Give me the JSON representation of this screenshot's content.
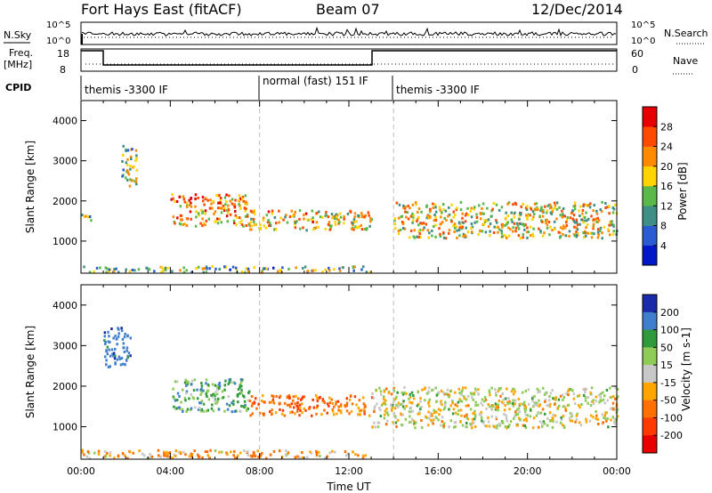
{
  "header": {
    "title": "Fort Hays East (fitACF)",
    "beam": "Beam 07",
    "date": "12/Dec/2014"
  },
  "panels": {
    "nsky_label": "N.Sky",
    "nsky_ticks": [
      "10^5",
      "10^0"
    ],
    "nsearch_label": "N.Search",
    "nsearch_ticks": [
      "10^5",
      "10^0"
    ],
    "freq_label": "Freq.",
    "freq_unit": "[MHz]",
    "freq_ticks": [
      "18",
      "8"
    ],
    "nave_label": "Nave",
    "nave_ticks": [
      "60",
      "0"
    ],
    "cpid_label": "CPID",
    "cpid_modes": [
      "themis -3300 IF",
      "normal (fast) 151 IF",
      "themis -3300 IF"
    ]
  },
  "chart_data": [
    {
      "type": "heatmap",
      "name": "power",
      "xlabel": "",
      "ylabel": "Slant Range [km]",
      "xlim": [
        0,
        24
      ],
      "ylim": [
        200,
        4500
      ],
      "yticks": [
        1000,
        2000,
        3000,
        4000
      ],
      "colorbar": {
        "label": "Power [dB]",
        "ticks": [
          "4",
          "8",
          "12",
          "16",
          "20",
          "24",
          "28"
        ],
        "colors": [
          "#0018c8",
          "#2a5bd0",
          "#3f8f86",
          "#5ab948",
          "#ffd400",
          "#ff8a00",
          "#ff4a00",
          "#e60000"
        ]
      },
      "echo_regions": [
        {
          "t": [
            0.0,
            0.5
          ],
          "range": [
            1500,
            1700
          ],
          "level": 0.5
        },
        {
          "t": [
            1.8,
            2.5
          ],
          "range": [
            2400,
            3400
          ],
          "level": 0.45
        },
        {
          "t": [
            4.0,
            7.5
          ],
          "range": [
            1400,
            2200
          ],
          "level": 0.7
        },
        {
          "t": [
            7.5,
            13.0
          ],
          "range": [
            1300,
            1800
          ],
          "level": 0.6
        },
        {
          "t": [
            14.0,
            24.0
          ],
          "range": [
            1100,
            2000
          ],
          "level": 0.55
        },
        {
          "t": [
            0.0,
            13.0
          ],
          "range": [
            250,
            400
          ],
          "level": 0.4
        }
      ]
    },
    {
      "type": "heatmap",
      "name": "velocity",
      "xlabel": "Time UT",
      "ylabel": "Slant Range [km]",
      "xlim": [
        0,
        24
      ],
      "ylim": [
        200,
        4500
      ],
      "yticks": [
        1000,
        2000,
        3000,
        4000
      ],
      "xticks": [
        "00:00",
        "04:00",
        "08:00",
        "12:00",
        "16:00",
        "20:00",
        "00:00"
      ],
      "colorbar": {
        "label": "Velocity [m s-1]",
        "ticks": [
          "200",
          "100",
          "50",
          "15",
          "-15",
          "-50",
          "-100",
          "-200"
        ],
        "colors": [
          "#1a2aa8",
          "#3f7fce",
          "#2e9a3a",
          "#8fcc57",
          "#c8c8c8",
          "#ffa500",
          "#ff7000",
          "#ff3a00",
          "#e80000"
        ]
      },
      "echo_regions": [
        {
          "t": [
            1.0,
            2.2
          ],
          "range": [
            2500,
            3500
          ],
          "velocity": 150
        },
        {
          "t": [
            4.0,
            7.5
          ],
          "range": [
            1400,
            2200
          ],
          "velocity": 60
        },
        {
          "t": [
            7.5,
            13.0
          ],
          "range": [
            1300,
            1800
          ],
          "velocity": -80
        },
        {
          "t": [
            13.0,
            24.0
          ],
          "range": [
            1000,
            2000
          ],
          "velocity": 0
        },
        {
          "t": [
            0.0,
            13.0
          ],
          "range": [
            250,
            450
          ],
          "velocity": -40
        }
      ]
    }
  ]
}
